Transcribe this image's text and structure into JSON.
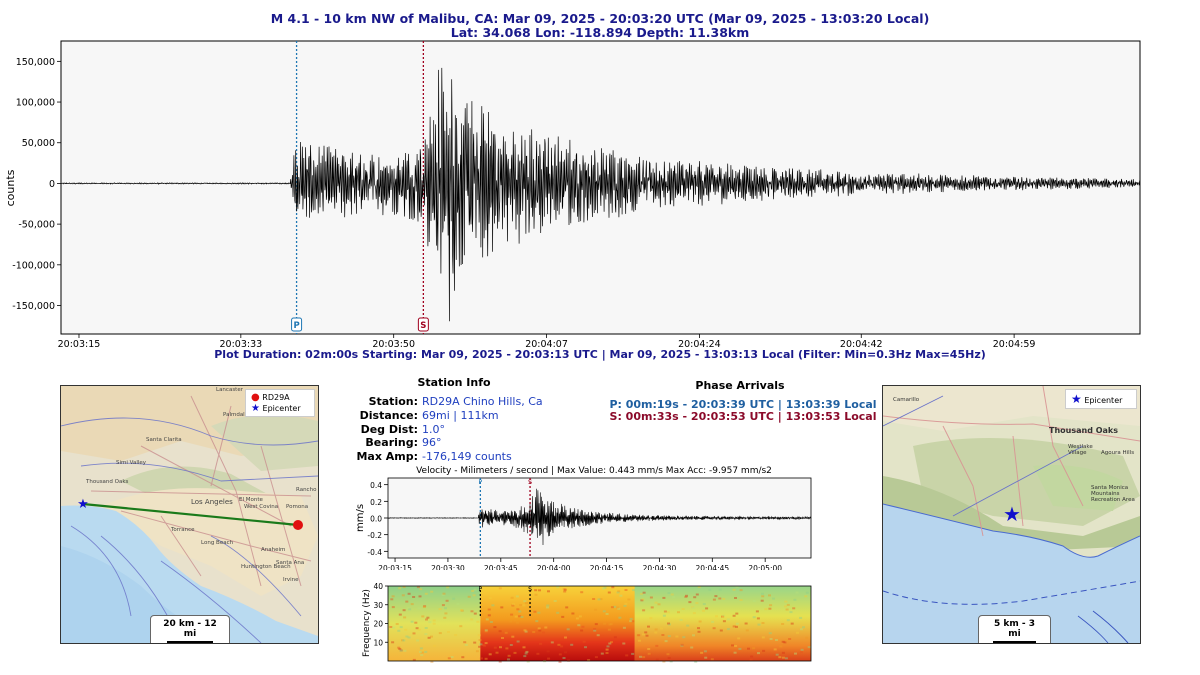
{
  "header": {
    "line1": "M 4.1 - 10 km NW of Malibu, CA:  Mar 09, 2025 - 20:03:20 UTC (Mar 09, 2025 - 13:03:20 Local)",
    "line2": "Lat: 34.068 Lon: -118.894 Depth: 11.38km"
  },
  "footer_line": "Plot Duration: 02m:00s  Starting: Mar 09, 2025 - 20:03:13 UTC | Mar 09, 2025 - 13:03:13 Local   (Filter:  Min=0.3Hz  Max=45Hz)",
  "station_info": {
    "title": "Station Info",
    "rows": [
      {
        "label": "Station:",
        "value": "RD29A Chino Hills, Ca"
      },
      {
        "label": "Distance:",
        "value": "69mi | 111km"
      },
      {
        "label": "Deg Dist:",
        "value": "1.0°"
      },
      {
        "label": "Bearing:",
        "value": "96°"
      },
      {
        "label": "Max Amp:",
        "value": "-176,149 counts"
      }
    ]
  },
  "phase_arrivals": {
    "title": "Phase Arrivals",
    "p": "P: 00m:19s - 20:03:39 UTC | 13:03:39 Local",
    "s": "S: 00m:33s - 20:03:53 UTC | 13:03:53 Local",
    "p_color": "#1f5fa0",
    "s_color": "#8b0a2a"
  },
  "left_map": {
    "legend_station": "RD29A",
    "legend_epicenter": "Epicenter",
    "scale": "20 km - 12 mi",
    "place_labels": [
      "Lancaster",
      "Palmdale",
      "Santa Clarita",
      "Simi Valley",
      "Thousand Oaks",
      "Los Angeles",
      "El Monte",
      "West Covina",
      "Pomona",
      "Torrance",
      "Long Beach",
      "Anaheim",
      "Santa Ana",
      "Huntington Beach",
      "Irvine",
      "Rancho Cucamonga"
    ]
  },
  "right_map": {
    "legend_epicenter": "Epicenter",
    "scale": "5 km - 3 mi",
    "place_labels": [
      "Camarillo",
      "Thousand Oaks",
      "Westlake Village",
      "Agoura Hills",
      "Santa Monica Mountains National Recreation Area"
    ]
  },
  "chart_data": [
    {
      "type": "line",
      "title": "",
      "xlabel": "",
      "ylabel": "counts",
      "ylim": [
        -185000,
        175000
      ],
      "yticks": [
        -150000,
        -100000,
        -50000,
        0,
        50000,
        100000,
        150000
      ],
      "ytick_labels": [
        "-150,000",
        "-100,000",
        "-50,000",
        "0",
        "50,000",
        "100,000",
        "150,000"
      ],
      "xlim_seconds": [
        0,
        120
      ],
      "xticks_seconds": [
        2,
        20,
        37,
        54,
        71,
        89,
        106
      ],
      "xtick_labels": [
        "20:03:15",
        "20:03:33",
        "20:03:50",
        "20:04:07",
        "20:04:24",
        "20:04:42",
        "20:04:59"
      ],
      "phase_markers": [
        {
          "label": "P",
          "seconds": 26.2,
          "color": "#1f77b4"
        },
        {
          "label": "S",
          "seconds": 40.3,
          "color": "#a0001e"
        }
      ],
      "envelope": {
        "seconds": [
          0,
          25.5,
          26.2,
          27,
          30,
          34,
          38,
          40.3,
          41.5,
          42.3,
          43,
          45,
          48,
          52,
          56,
          60,
          66,
          72,
          80,
          88,
          96,
          104,
          112,
          120
        ],
        "amplitude": [
          800,
          800,
          70000,
          50000,
          45000,
          38000,
          40000,
          55000,
          130000,
          150000,
          176000,
          110000,
          85000,
          70000,
          55000,
          45000,
          35000,
          27000,
          20000,
          15000,
          12000,
          9000,
          7000,
          5000
        ]
      },
      "grid": false
    },
    {
      "type": "line",
      "title": "Velocity - Milimeters / second | Max Value: 0.443 mm/s Max Acc: -9.957 mm/s2",
      "xlabel": "",
      "ylabel": "mm/s",
      "ylim": [
        -0.48,
        0.48
      ],
      "yticks": [
        -0.4,
        -0.2,
        0.0,
        0.2,
        0.4
      ],
      "ytick_labels": [
        "-0.4",
        "-0.2",
        "0.0",
        "0.2",
        "0.4"
      ],
      "xlim_seconds": [
        0,
        120
      ],
      "xticks_seconds": [
        2,
        17,
        32,
        47,
        62,
        77,
        92,
        107
      ],
      "xtick_labels": [
        "20:03:15",
        "20:03:30",
        "20:03:45",
        "20:04:00",
        "20:04:15",
        "20:04:30",
        "20:04:45",
        "20:05:00"
      ],
      "phase_markers": [
        {
          "label": "P",
          "seconds": 26.2,
          "color": "#1f77b4"
        },
        {
          "label": "S",
          "seconds": 40.3,
          "color": "#a0001e"
        }
      ],
      "envelope": {
        "seconds": [
          0,
          25.5,
          26.2,
          30,
          36,
          40.3,
          42.5,
          45,
          50,
          58,
          70,
          85,
          100,
          120
        ],
        "amplitude": [
          0.004,
          0.004,
          0.12,
          0.1,
          0.12,
          0.2,
          0.443,
          0.28,
          0.15,
          0.08,
          0.04,
          0.025,
          0.02,
          0.015
        ]
      }
    },
    {
      "type": "heatmap",
      "title": "",
      "xlabel": "",
      "ylabel": "Frequency (Hz)",
      "ylim": [
        0,
        40
      ],
      "yticks": [
        10,
        20,
        30,
        40
      ],
      "ytick_labels": [
        "10",
        "20",
        "30",
        "40"
      ],
      "xlim_seconds": [
        0,
        120
      ],
      "phase_markers": [
        {
          "label": "P",
          "seconds": 26.2
        },
        {
          "label": "S",
          "seconds": 40.3
        }
      ]
    }
  ]
}
